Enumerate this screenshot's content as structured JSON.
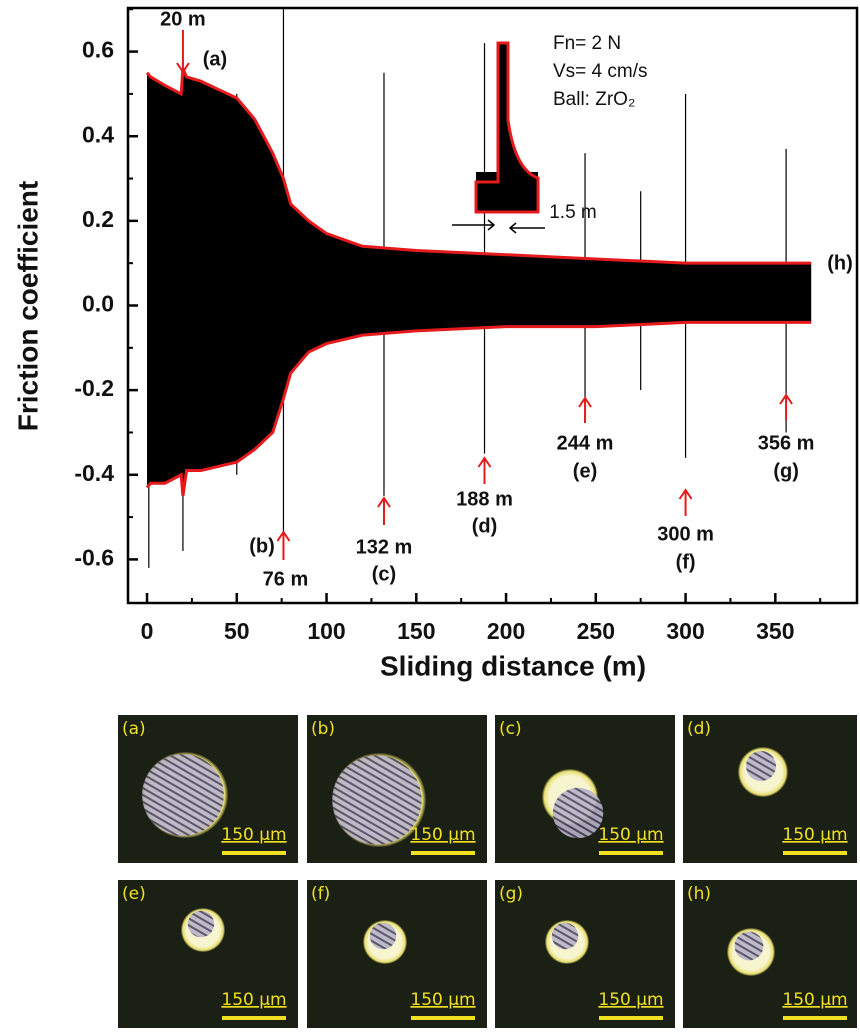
{
  "chart_data": {
    "type": "line",
    "x": [
      0,
      2,
      10,
      19,
      20,
      22,
      30,
      40,
      50,
      60,
      70,
      76,
      80,
      90,
      100,
      120,
      150,
      200,
      250,
      300,
      370
    ],
    "series": [
      {
        "color": "#e41a1c",
        "values": [
          0.55,
          0.54,
          0.52,
          0.5,
          0.56,
          0.54,
          0.53,
          0.51,
          0.49,
          0.44,
          0.36,
          0.3,
          0.24,
          0.2,
          0.17,
          0.14,
          0.13,
          0.12,
          0.11,
          0.1,
          0.1
        ]
      },
      {
        "color": "#e41a1c",
        "values": [
          -0.43,
          -0.42,
          -0.42,
          -0.4,
          -0.45,
          -0.39,
          -0.39,
          -0.38,
          -0.37,
          -0.34,
          -0.3,
          -0.22,
          -0.16,
          -0.11,
          -0.09,
          -0.07,
          -0.06,
          -0.05,
          -0.05,
          -0.04,
          -0.04
        ]
      }
    ],
    "fill_color": "#000000",
    "spikes": {
      "x": [
        1,
        20,
        50,
        76,
        132,
        188,
        244,
        275,
        300,
        356
      ],
      "high": [
        0.55,
        0.6,
        0.5,
        0.7,
        0.55,
        0.62,
        0.36,
        0.27,
        0.5,
        0.37
      ],
      "low": [
        -0.62,
        -0.58,
        -0.4,
        -0.55,
        -0.45,
        -0.35,
        -0.22,
        -0.2,
        -0.36,
        -0.3
      ]
    },
    "xlabel": "Sliding distance (m)",
    "ylabel": "Friction coefficient",
    "xlim": [
      -10.6,
      395.5
    ],
    "ylim": [
      -0.703,
      0.703
    ],
    "xticks": [
      0,
      50,
      100,
      150,
      200,
      250,
      300,
      350
    ],
    "yticks": [
      -0.6,
      -0.4,
      -0.2,
      {
        "value": 0,
        "label": "0.0"
      },
      0.2,
      0.4,
      0.6
    ],
    "conditions": [
      "Fn= 2 N",
      "Vs= 4 cm/s",
      "Ball: ZrO₂"
    ],
    "inset_label": "1.5 m",
    "annotations": [
      {
        "x": 20,
        "text": "20 m",
        "label": "(a)"
      },
      {
        "x": 76,
        "text": "76 m",
        "label": "(b)"
      },
      {
        "x": 132,
        "text": "132 m",
        "label": "(c)"
      },
      {
        "x": 188,
        "text": "188 m",
        "label": "(d)"
      },
      {
        "x": 244,
        "text": "244 m",
        "label": "(e)"
      },
      {
        "x": 300,
        "text": "300 m",
        "label": "(f)"
      },
      {
        "x": 356,
        "text": "356 m",
        "label": "(g)"
      },
      {
        "label": "(h)"
      }
    ]
  },
  "micrographs": [
    {
      "label": "(a)",
      "scale": "150 µm"
    },
    {
      "label": "(b)",
      "scale": "150 µm"
    },
    {
      "label": "(c)",
      "scale": "150 µm"
    },
    {
      "label": "(d)",
      "scale": "150 µm"
    },
    {
      "label": "(e)",
      "scale": "150 µm"
    },
    {
      "label": "(f)",
      "scale": "150 µm"
    },
    {
      "label": "(g)",
      "scale": "150 µm"
    },
    {
      "label": "(h)",
      "scale": "150 µm"
    }
  ]
}
